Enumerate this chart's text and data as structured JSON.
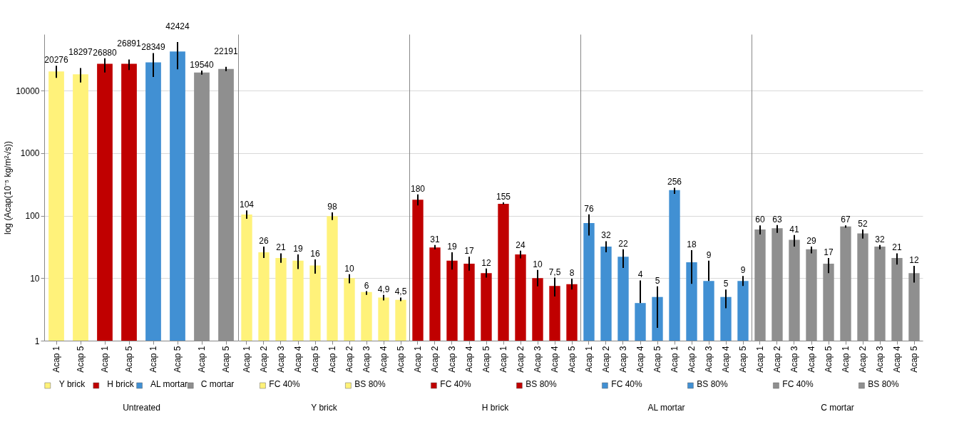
{
  "chart_data": [
    {
      "type": "bar",
      "legend": "bottom",
      "xlabel": "Untreated",
      "ylabel": "log (Acap(10⁻⁵ kg/m²√s))",
      "log": true,
      "grid": "y",
      "ylim": [
        1,
        80000
      ],
      "yticks": [
        1,
        10,
        100,
        1000,
        10000
      ],
      "categories": [
        "Acap 1",
        "Acap 5",
        "Acap 1",
        "Acap 5",
        "Acap 1",
        "Acap 5",
        "Acap 1",
        "Acap 5"
      ],
      "series": [
        {
          "name": "Y brick",
          "color": "#fff27a",
          "values": [
            20276,
            18297,
            null,
            null,
            null,
            null,
            null,
            null
          ],
          "errors": [
            [
              16000,
              25000
            ],
            [
              13500,
              23000
            ],
            null,
            null,
            null,
            null,
            null,
            null
          ],
          "value_labels": [
            "20276",
            "18297",
            null,
            null,
            null,
            null,
            null,
            null
          ]
        },
        {
          "name": "H brick",
          "color": "#c00000",
          "values": [
            null,
            null,
            26880,
            26891,
            null,
            null,
            null,
            null
          ],
          "errors": [
            null,
            null,
            [
              19500,
              33000
            ],
            [
              21400,
              31600
            ],
            null,
            null,
            null,
            null
          ],
          "value_labels": [
            null,
            null,
            "26880",
            "26891",
            null,
            null,
            null,
            null
          ]
        },
        {
          "name": "AL mortar",
          "color": "#4190d3",
          "values": [
            null,
            null,
            null,
            null,
            28349,
            42424,
            null,
            null
          ],
          "errors": [
            null,
            null,
            null,
            null,
            [
              16600,
              40000
            ],
            [
              22000,
              60000
            ],
            null,
            null
          ],
          "value_labels": [
            null,
            null,
            null,
            null,
            "28349",
            "42424",
            null,
            null
          ]
        },
        {
          "name": "C mortar",
          "color": "#8f8f8f",
          "values": [
            null,
            null,
            null,
            null,
            null,
            null,
            19540,
            22191
          ],
          "errors": [
            null,
            null,
            null,
            null,
            null,
            null,
            [
              18000,
              21000
            ],
            [
              20500,
              24000
            ]
          ],
          "value_labels": [
            null,
            null,
            null,
            null,
            null,
            null,
            "19540",
            "22191"
          ]
        }
      ]
    },
    {
      "type": "bar",
      "legend": "bottom",
      "xlabel": "Y brick",
      "log": true,
      "grid": "y",
      "tick_labels": "x",
      "ylim": [
        1,
        80000
      ],
      "yticks": [
        1,
        10,
        100,
        1000,
        10000
      ],
      "categories": [
        "Acap 1",
        "Acap 2",
        "Acap 3",
        "Acap 4",
        "Acap 5",
        "Acap 1",
        "Acap 2",
        "Acap 3",
        "Acap 4",
        "Acap 5"
      ],
      "series": [
        {
          "name": "FC 40%",
          "color": "#fff27a",
          "values": [
            104,
            26,
            21,
            19,
            16,
            null,
            null,
            null,
            null,
            null
          ],
          "errors": [
            [
              89,
              121
            ],
            [
              21,
              32
            ],
            [
              17.6,
              25
            ],
            [
              14,
              24
            ],
            [
              11.8,
              20
            ],
            null,
            null,
            null,
            null,
            null
          ],
          "value_labels": [
            "104",
            "26",
            "21",
            "19",
            "16",
            null,
            null,
            null,
            null,
            null
          ]
        },
        {
          "name": "BS 80%",
          "color": "#fff27a",
          "values": [
            null,
            null,
            null,
            null,
            null,
            98,
            10,
            6,
            4.9,
            4.5
          ],
          "errors": [
            null,
            null,
            null,
            null,
            null,
            [
              85,
              113
            ],
            [
              8.3,
              11.6
            ],
            [
              5.4,
              6.2
            ],
            [
              4.4,
              5.4
            ],
            [
              4.3,
              4.9
            ]
          ],
          "value_labels": [
            null,
            null,
            null,
            null,
            null,
            "98",
            "10",
            "6",
            "4,9",
            "4,5"
          ]
        }
      ]
    },
    {
      "type": "bar",
      "legend": "bottom",
      "xlabel": "H brick",
      "log": true,
      "grid": "y",
      "tick_labels": "x",
      "ylim": [
        1,
        80000
      ],
      "yticks": [
        1,
        10,
        100,
        1000,
        10000
      ],
      "categories": [
        "Acap 1",
        "Acap 2",
        "Acap 3",
        "Acap 4",
        "Acap 5",
        "Acap 1",
        "Acap 2",
        "Acap 3",
        "Acap 4",
        "Acap 5"
      ],
      "series": [
        {
          "name": "FC 40%",
          "color": "#c00000",
          "values": [
            180,
            31,
            19,
            17,
            12,
            null,
            null,
            null,
            null,
            null
          ],
          "errors": [
            [
              146,
              219
            ],
            [
              29,
              34
            ],
            [
              13.7,
              26
            ],
            [
              13.2,
              22
            ],
            [
              10.2,
              14.3
            ],
            null,
            null,
            null,
            null,
            null
          ],
          "value_labels": [
            "180",
            "31",
            "19",
            "17",
            "12",
            null,
            null,
            null,
            null,
            null
          ]
        },
        {
          "name": "BS 80%",
          "color": "#c00000",
          "values": [
            null,
            null,
            null,
            null,
            null,
            155,
            24,
            10,
            7.5,
            8
          ],
          "errors": [
            null,
            null,
            null,
            null,
            null,
            [
              152,
              163
            ],
            [
              20.7,
              27.5
            ],
            [
              7.4,
              13.5
            ],
            [
              5.1,
              10.2
            ],
            [
              6.6,
              9.8
            ]
          ],
          "value_labels": [
            null,
            null,
            null,
            null,
            null,
            "155",
            "24",
            "10",
            "7,5",
            "8"
          ]
        }
      ]
    },
    {
      "type": "bar",
      "legend": "bottom",
      "xlabel": "AL mortar",
      "log": true,
      "grid": "y",
      "tick_labels": "x",
      "ylim": [
        1,
        80000
      ],
      "yticks": [
        1,
        10,
        100,
        1000,
        10000
      ],
      "categories": [
        "Acap 1",
        "Acap 2",
        "Acap 3",
        "Acap 4",
        "Acap 5",
        "Acap 1",
        "Acap 2",
        "Acap 3",
        "Acap 4",
        "Acap 5"
      ],
      "series": [
        {
          "name": "FC 40%",
          "color": "#4190d3",
          "values": [
            76,
            32,
            22,
            4,
            5,
            null,
            null,
            null,
            null,
            null
          ],
          "errors": [
            [
              48,
              105
            ],
            [
              26,
              39
            ],
            [
              14.6,
              29
            ],
            [
              4,
              9.2
            ],
            [
              1.6,
              7.4
            ],
            null,
            null,
            null,
            null,
            null
          ],
          "value_labels": [
            "76",
            "32",
            "22",
            "4",
            "5",
            null,
            null,
            null,
            null,
            null
          ]
        },
        {
          "name": "BS 80%",
          "color": "#4190d3",
          "values": [
            null,
            null,
            null,
            null,
            null,
            256,
            18,
            9,
            5,
            9
          ],
          "errors": [
            null,
            null,
            null,
            null,
            null,
            [
              224,
              280
            ],
            [
              8.1,
              28
            ],
            [
              9,
              19
            ],
            [
              3.3,
              6.6
            ],
            [
              7.5,
              10.8
            ]
          ],
          "value_labels": [
            null,
            null,
            null,
            null,
            null,
            "256",
            "18",
            "9",
            "5",
            "9"
          ]
        }
      ]
    },
    {
      "type": "bar",
      "legend": "bottom",
      "xlabel": "C mortar",
      "log": true,
      "grid": "y",
      "tick_labels": "x",
      "ylim": [
        1,
        80000
      ],
      "yticks": [
        1,
        10,
        100,
        1000,
        10000
      ],
      "categories": [
        "Acap 1",
        "Acap 2",
        "Acap 3",
        "Acap 4",
        "Acap 5",
        "Acap 1",
        "Acap 2",
        "Acap 3",
        "Acap 4",
        "Acap 5"
      ],
      "series": [
        {
          "name": "FC 40%",
          "color": "#8f8f8f",
          "values": [
            60,
            63,
            41,
            29,
            17,
            null,
            null,
            null,
            null,
            null
          ],
          "errors": [
            [
              50,
              70
            ],
            [
              53,
              71
            ],
            [
              32,
              49
            ],
            [
              25,
              32
            ],
            [
              12,
              21
            ],
            null,
            null,
            null,
            null,
            null
          ],
          "value_labels": [
            "60",
            "63",
            "41",
            "29",
            "17",
            null,
            null,
            null,
            null,
            null
          ]
        },
        {
          "name": "BS 80%",
          "color": "#8f8f8f",
          "values": [
            null,
            null,
            null,
            null,
            null,
            67,
            52,
            32,
            21,
            12
          ],
          "errors": [
            null,
            null,
            null,
            null,
            null,
            [
              64,
              70
            ],
            [
              43,
              60
            ],
            [
              29,
              34
            ],
            [
              16.5,
              25
            ],
            [
              8.5,
              15.8
            ]
          ],
          "value_labels": [
            null,
            null,
            null,
            null,
            null,
            "67",
            "52",
            "32",
            "21",
            "12"
          ]
        }
      ]
    }
  ]
}
